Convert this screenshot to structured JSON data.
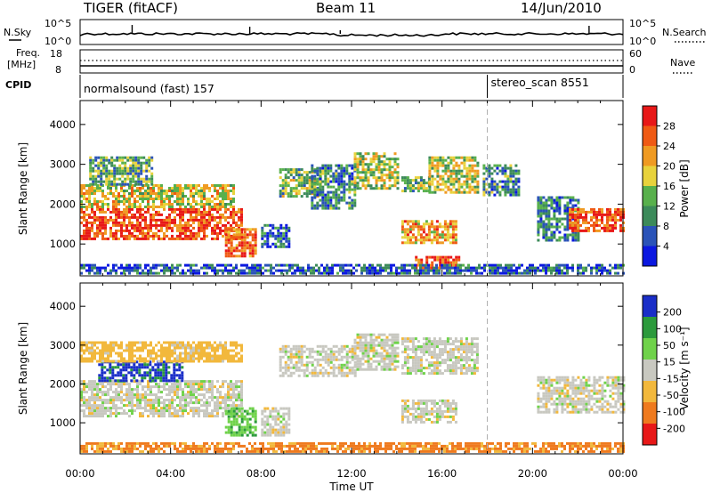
{
  "header": {
    "station": "TIGER (fitACF)",
    "beam": "Beam 11",
    "date": "14/Jun/2010"
  },
  "top_strip": {
    "left_label": "N.Sky",
    "right_label": "N.Search",
    "left_ticks": [
      "10^5",
      "10^0"
    ],
    "right_ticks": [
      "10^5",
      "10^0"
    ],
    "freq_label_1": "Freq.",
    "freq_label_2": "[MHz]",
    "freq_ticks": [
      "18",
      "8"
    ],
    "nave_label": "Nave",
    "nave_ticks": [
      "60",
      "0"
    ],
    "cpid_label": "CPID",
    "modes": [
      {
        "name": "normalsound (fast) 157",
        "start_hour": 0
      },
      {
        "name": "stereo_scan 8551",
        "start_hour": 18
      }
    ]
  },
  "x_axis": {
    "label": "Time UT",
    "ticks": [
      "00:00",
      "04:00",
      "08:00",
      "12:00",
      "16:00",
      "20:00",
      "00:00"
    ]
  },
  "colors": {
    "power_scale": [
      "#0b18e0",
      "#2a53b8",
      "#3c8a5a",
      "#58b04c",
      "#e8d23c",
      "#ef9a22",
      "#ef5a14",
      "#e81818"
    ],
    "velocity_scale": [
      "#1a2ec8",
      "#2c9a3c",
      "#6fd24a",
      "#c8c8c0",
      "#f2b83c",
      "#ef7a1e",
      "#e81818"
    ]
  },
  "chart_data": [
    {
      "type": "heatmap",
      "title": "Power",
      "ylabel": "Slant Range [km]",
      "xlim": [
        0,
        24
      ],
      "ylim": [
        200,
        4600
      ],
      "y_ticks": [
        1000,
        2000,
        3000,
        4000
      ],
      "colorbar": {
        "label": "Power [dB]",
        "min": 0,
        "max": 32,
        "ticks": [
          4,
          8,
          12,
          16,
          20,
          24,
          28
        ]
      },
      "echo_regions": [
        {
          "t0": 0.0,
          "t1": 7.2,
          "r0": 1150,
          "r1": 1900,
          "value": 27
        },
        {
          "t0": 0.0,
          "t1": 6.8,
          "r0": 1900,
          "r1": 2500,
          "value": 18
        },
        {
          "t0": 0.4,
          "t1": 3.2,
          "r0": 2500,
          "r1": 3200,
          "value": 12
        },
        {
          "t0": 6.4,
          "t1": 7.8,
          "r0": 700,
          "r1": 1400,
          "value": 26
        },
        {
          "t0": 8.0,
          "t1": 9.2,
          "r0": 900,
          "r1": 1500,
          "value": 8
        },
        {
          "t0": 8.8,
          "t1": 10.6,
          "r0": 2200,
          "r1": 2900,
          "value": 14
        },
        {
          "t0": 10.2,
          "t1": 12.2,
          "r0": 1900,
          "r1": 3000,
          "value": 10
        },
        {
          "t0": 12.1,
          "t1": 14.0,
          "r0": 2400,
          "r1": 3300,
          "value": 16
        },
        {
          "t0": 14.2,
          "t1": 15.4,
          "r0": 2300,
          "r1": 2700,
          "value": 14
        },
        {
          "t0": 15.4,
          "t1": 17.6,
          "r0": 2300,
          "r1": 3200,
          "value": 17
        },
        {
          "t0": 14.2,
          "t1": 16.6,
          "r0": 1000,
          "r1": 1600,
          "value": 22
        },
        {
          "t0": 14.8,
          "t1": 16.8,
          "r0": 400,
          "r1": 700,
          "value": 28
        },
        {
          "t0": 17.8,
          "t1": 19.4,
          "r0": 2200,
          "r1": 3000,
          "value": 10
        },
        {
          "t0": 20.2,
          "t1": 22.0,
          "r0": 1100,
          "r1": 2200,
          "value": 9
        },
        {
          "t0": 21.6,
          "t1": 24.0,
          "r0": 1300,
          "r1": 1900,
          "value": 27
        },
        {
          "t0": 0.0,
          "t1": 24.0,
          "r0": 250,
          "r1": 500,
          "value": 6
        }
      ]
    },
    {
      "type": "heatmap",
      "title": "Velocity",
      "ylabel": "Slant Range [km]",
      "xlim": [
        0,
        24
      ],
      "ylim": [
        200,
        4600
      ],
      "y_ticks": [
        1000,
        2000,
        3000,
        4000
      ],
      "colorbar": {
        "label": "Velocity [m s⁻¹]",
        "min": -250,
        "max": 250,
        "ticks": [
          200,
          100,
          50,
          15,
          -15,
          -50,
          -100,
          -200
        ]
      },
      "echo_regions": [
        {
          "t0": 0.0,
          "t1": 7.2,
          "r0": 1150,
          "r1": 2100,
          "value": 0
        },
        {
          "t0": 0.8,
          "t1": 4.5,
          "r0": 2100,
          "r1": 2600,
          "value": 160
        },
        {
          "t0": 0.0,
          "t1": 7.2,
          "r0": 2600,
          "r1": 3100,
          "value": -30
        },
        {
          "t0": 6.4,
          "t1": 7.8,
          "r0": 700,
          "r1": 1400,
          "value": 40
        },
        {
          "t0": 8.0,
          "t1": 9.2,
          "r0": 700,
          "r1": 1400,
          "value": 0
        },
        {
          "t0": 8.8,
          "t1": 12.2,
          "r0": 2200,
          "r1": 3000,
          "value": 0
        },
        {
          "t0": 12.1,
          "t1": 14.0,
          "r0": 2400,
          "r1": 3300,
          "value": 0
        },
        {
          "t0": 14.2,
          "t1": 17.6,
          "r0": 2300,
          "r1": 3200,
          "value": 0
        },
        {
          "t0": 14.2,
          "t1": 16.6,
          "r0": 1000,
          "r1": 1600,
          "value": 0
        },
        {
          "t0": 20.2,
          "t1": 24.0,
          "r0": 1300,
          "r1": 2200,
          "value": 0
        },
        {
          "t0": 0.0,
          "t1": 24.0,
          "r0": 250,
          "r1": 500,
          "value": -60
        }
      ]
    }
  ]
}
